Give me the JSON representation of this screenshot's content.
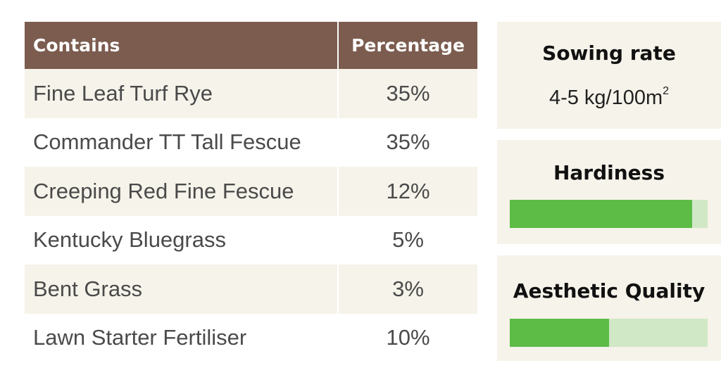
{
  "table": {
    "header": {
      "contains": "Contains",
      "percentage": "Percentage"
    },
    "rows": [
      {
        "name": "Fine Leaf Turf Rye",
        "pct": "35%"
      },
      {
        "name": "Commander TT Tall Fescue",
        "pct": "35%"
      },
      {
        "name": "Creeping Red Fine Fescue",
        "pct": "12%"
      },
      {
        "name": "Kentucky Bluegrass",
        "pct": "5%"
      },
      {
        "name": "Bent Grass",
        "pct": "3%"
      },
      {
        "name": "Lawn Starter Fertiliser",
        "pct": "10%"
      }
    ]
  },
  "sowing": {
    "title": "Sowing rate",
    "value": "4-5 kg/100m",
    "sup": "2"
  },
  "hardiness": {
    "title": "Hardiness",
    "level_fraction": 0.92
  },
  "aesthetic": {
    "title": "Aesthetic Quality",
    "level_fraction": 0.5
  },
  "colors": {
    "header_bg": "#7b5c4f",
    "row_shade": "#f6f3ea",
    "bar_fill": "#5cbc46",
    "bar_track": "#d1e8c6"
  }
}
